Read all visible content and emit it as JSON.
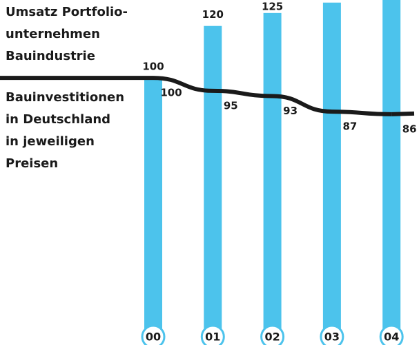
{
  "chart_data": {
    "type": "bar_line",
    "categories": [
      "00",
      "01",
      "02",
      "03",
      "04"
    ],
    "series": [
      {
        "name": "Umsatz Portfolio-\nunternehmen\nBauindustrie",
        "type": "bar",
        "color": "#4cc3ec",
        "values": [
          100,
          120,
          125,
          129,
          135
        ]
      },
      {
        "name": "Bauinvestitionen\nin Deutschland\nin jeweiligen\nPreisen",
        "type": "line",
        "color": "#1a1a1a",
        "values": [
          100,
          95,
          93,
          87,
          86
        ]
      }
    ],
    "ylim": [
      0,
      130
    ]
  }
}
